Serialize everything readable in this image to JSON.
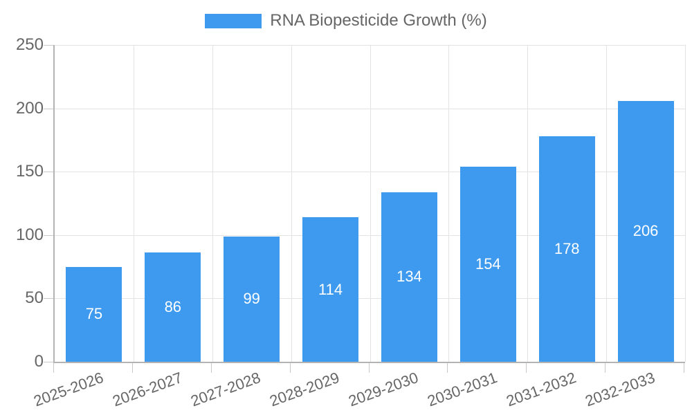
{
  "legend": {
    "label": "RNA Biopesticide Growth (%)"
  },
  "chart_data": {
    "type": "bar",
    "title": "",
    "xlabel": "",
    "ylabel": "",
    "categories": [
      "2025-2026",
      "2026-2027",
      "2027-2028",
      "2028-2029",
      "2029-2030",
      "2030-2031",
      "2031-2032",
      "2032-2033"
    ],
    "series": [
      {
        "name": "RNA Biopesticide Growth (%)",
        "values": [
          75,
          86,
          99,
          114,
          134,
          154,
          178,
          206
        ]
      }
    ],
    "value_labels_shown": true,
    "ylim": [
      0,
      250
    ],
    "yticks": [
      0,
      50,
      100,
      150,
      200,
      250
    ],
    "grid": "both",
    "legend_position": "top-center",
    "x_tick_rotation_deg": -20,
    "colors": {
      "bar": "#3E9AEE",
      "value_label": "#FFFFFF",
      "axis_text": "#666666",
      "grid_line": "#E3E3E3",
      "axis_line": "#B3B3B3",
      "tick_mark": "#C9C9C9",
      "background": "#FFFFFF"
    }
  }
}
